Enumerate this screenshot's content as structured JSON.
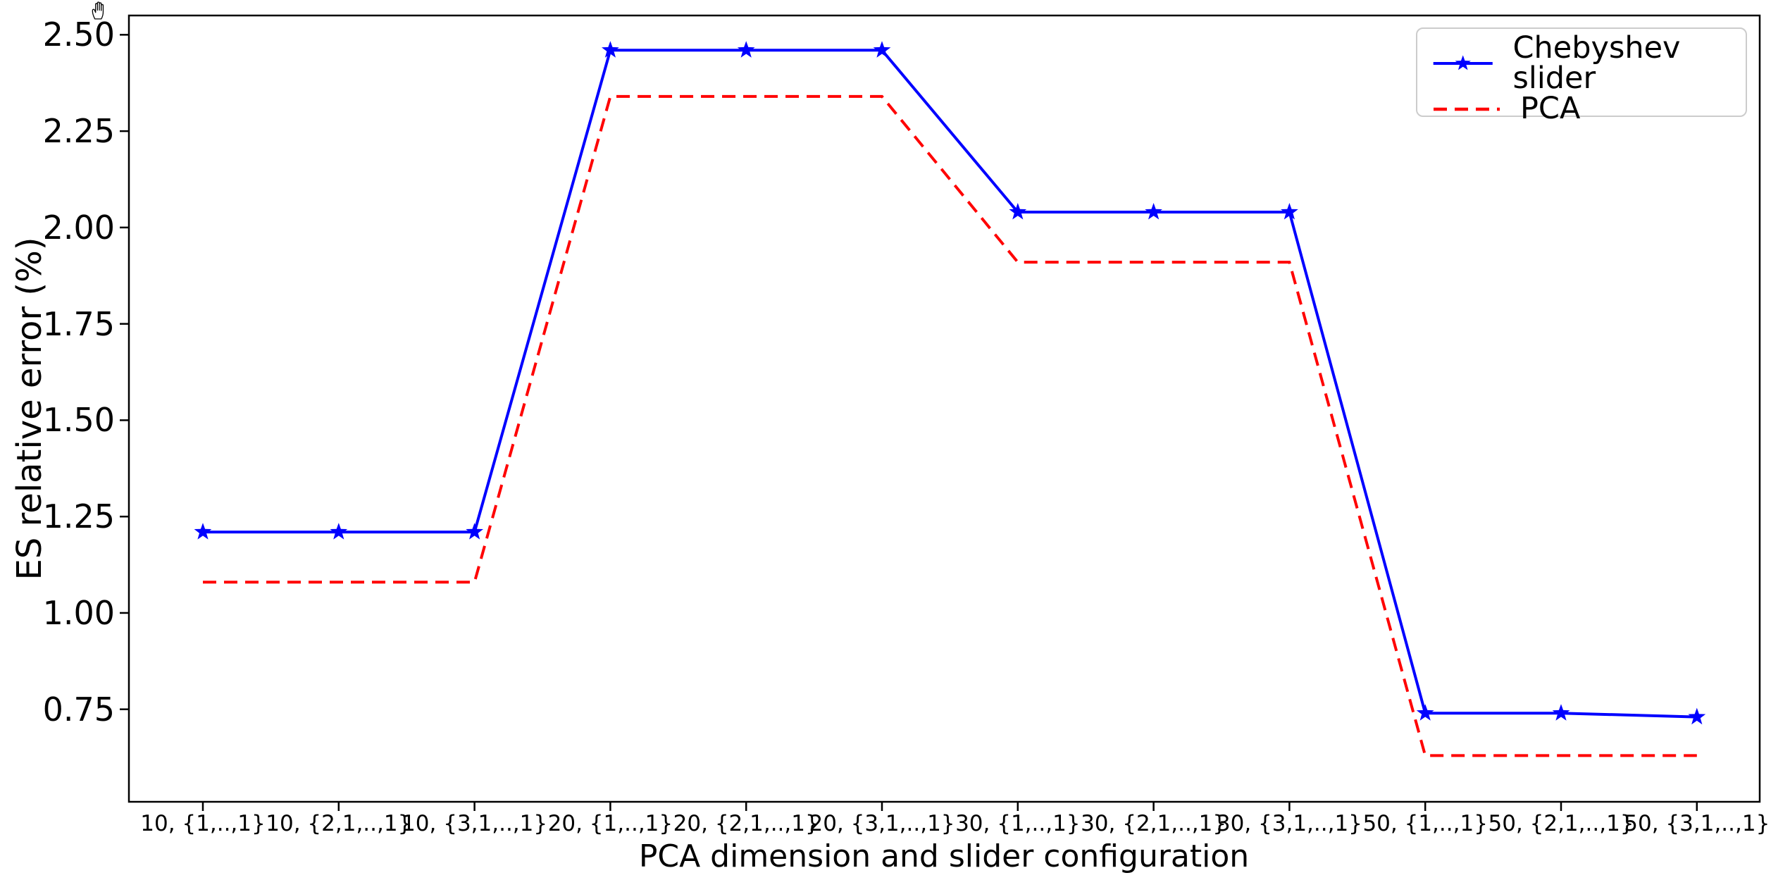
{
  "figure": {
    "background": "#ffffff",
    "axis_color": "#000000",
    "legend_border_color": "#cccccc",
    "icons": {
      "hand_cursor": "open-hand-pan-cursor"
    }
  },
  "chart_data": {
    "type": "line",
    "title": "",
    "xlabel": "PCA dimension and slider configuration",
    "ylabel": "ES relative error (%)",
    "categories": [
      "10, {1,..,1}",
      "10, {2,1,..,1}",
      "10, {3,1,..,1}",
      "20, {1,..,1}",
      "20, {2,1,..,1}",
      "20, {3,1,..,1}",
      "30, {1,..,1}",
      "30, {2,1,..,1}",
      "30, {3,1,..,1}",
      "50, {1,..,1}",
      "50, {2,1,..,1}",
      "50, {3,1,..,1}"
    ],
    "series": [
      {
        "name": "Chebyshev slider",
        "color": "#0000ff",
        "style": "solid",
        "marker": "star",
        "values": [
          1.21,
          1.21,
          1.21,
          2.46,
          2.46,
          2.46,
          2.04,
          2.04,
          2.04,
          0.74,
          0.74,
          0.73
        ]
      },
      {
        "name": "PCA",
        "color": "#ff0000",
        "style": "dashed",
        "marker": "none",
        "values": [
          1.08,
          1.08,
          1.08,
          2.34,
          2.34,
          2.34,
          1.91,
          1.91,
          1.91,
          0.63,
          0.63,
          0.63
        ]
      }
    ],
    "yticks": [
      {
        "value": 0.75,
        "label": "0.75"
      },
      {
        "value": 1.0,
        "label": "1.00"
      },
      {
        "value": 1.25,
        "label": "1.25"
      },
      {
        "value": 1.5,
        "label": "1.50"
      },
      {
        "value": 1.75,
        "label": "1.75"
      },
      {
        "value": 2.0,
        "label": "2.00"
      },
      {
        "value": 2.25,
        "label": "2.25"
      },
      {
        "value": 2.5,
        "label": "2.50"
      }
    ],
    "ylim": [
      0.51,
      2.55
    ],
    "grid": false,
    "legend_position": "upper right"
  }
}
